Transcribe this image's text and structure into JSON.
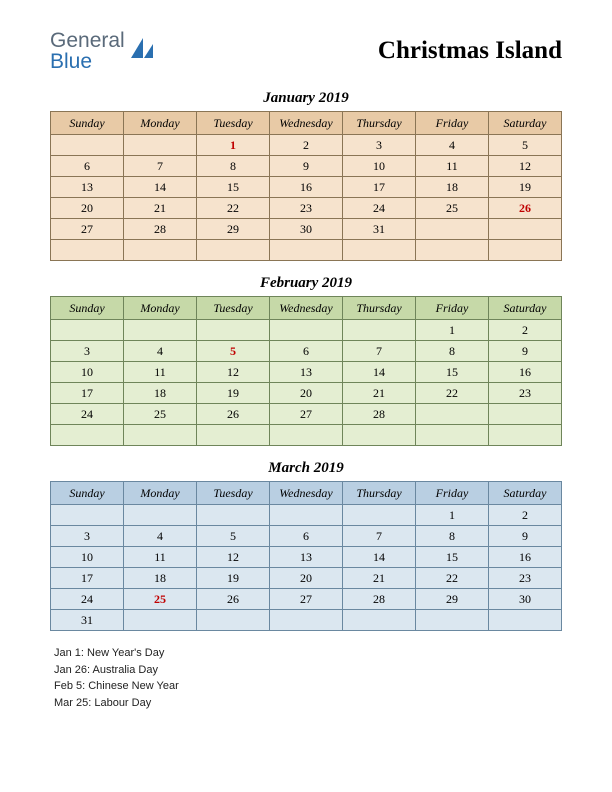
{
  "logo": {
    "line1": "General",
    "line2": "Blue",
    "color1": "#5a6a7a",
    "color2": "#2a6fb0",
    "icon_color": "#2a6fb0"
  },
  "title": "Christmas Island",
  "day_headers": [
    "Sunday",
    "Monday",
    "Tuesday",
    "Wednesday",
    "Thursday",
    "Friday",
    "Saturday"
  ],
  "months": [
    {
      "name": "January 2019",
      "header_bg": "#e8caa6",
      "body_bg": "#f6e3cd",
      "border": "#8a7555",
      "weeks": [
        [
          "",
          "",
          "1",
          "2",
          "3",
          "4",
          "5"
        ],
        [
          "6",
          "7",
          "8",
          "9",
          "10",
          "11",
          "12"
        ],
        [
          "13",
          "14",
          "15",
          "16",
          "17",
          "18",
          "19"
        ],
        [
          "20",
          "21",
          "22",
          "23",
          "24",
          "25",
          "26"
        ],
        [
          "27",
          "28",
          "29",
          "30",
          "31",
          "",
          ""
        ],
        [
          "",
          "",
          "",
          "",
          "",
          "",
          ""
        ]
      ],
      "holidays": [
        "1",
        "26"
      ]
    },
    {
      "name": "February 2019",
      "header_bg": "#c6d9a8",
      "body_bg": "#e4eed2",
      "border": "#6f855a",
      "weeks": [
        [
          "",
          "",
          "",
          "",
          "",
          "1",
          "2"
        ],
        [
          "3",
          "4",
          "5",
          "6",
          "7",
          "8",
          "9"
        ],
        [
          "10",
          "11",
          "12",
          "13",
          "14",
          "15",
          "16"
        ],
        [
          "17",
          "18",
          "19",
          "20",
          "21",
          "22",
          "23"
        ],
        [
          "24",
          "25",
          "26",
          "27",
          "28",
          "",
          ""
        ],
        [
          "",
          "",
          "",
          "",
          "",
          "",
          ""
        ]
      ],
      "holidays": [
        "5"
      ]
    },
    {
      "name": "March 2019",
      "header_bg": "#b9cfe2",
      "body_bg": "#dbe7f0",
      "border": "#6a88a0",
      "weeks": [
        [
          "",
          "",
          "",
          "",
          "",
          "1",
          "2"
        ],
        [
          "3",
          "4",
          "5",
          "6",
          "7",
          "8",
          "9"
        ],
        [
          "10",
          "11",
          "12",
          "13",
          "14",
          "15",
          "16"
        ],
        [
          "17",
          "18",
          "19",
          "20",
          "21",
          "22",
          "23"
        ],
        [
          "24",
          "25",
          "26",
          "27",
          "28",
          "29",
          "30"
        ],
        [
          "31",
          "",
          "",
          "",
          "",
          "",
          ""
        ]
      ],
      "holidays": [
        "25"
      ]
    }
  ],
  "holiday_list": [
    "Jan 1: New Year's Day",
    "Jan 26: Australia Day",
    "Feb 5: Chinese New Year",
    "Mar 25: Labour Day"
  ]
}
